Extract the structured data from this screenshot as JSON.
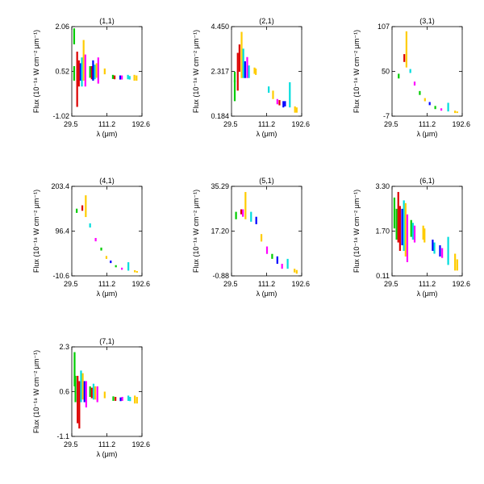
{
  "figure": {
    "x_axis_label": "λ (μm)",
    "y_axis_label": "Flux (10⁻¹⁸ W cm⁻² μm⁻¹)"
  },
  "chart_data": [
    {
      "type": "scatter",
      "title": "(1,1)",
      "xlabel": "λ (μm)",
      "ylabel": "Flux (10⁻¹⁸ W cm⁻² μm⁻¹)",
      "xlim": [
        29.5,
        192.6
      ],
      "ylim": [
        -1.02,
        2.06
      ],
      "xticks": [
        "29.5",
        "111.2",
        "192.6"
      ],
      "yticks": [
        "-1.02",
        "0.52",
        "2.06"
      ],
      "segments": [
        {
          "x": 35,
          "ymin": 1.45,
          "ymax": 2.0,
          "color": "#00cc00"
        },
        {
          "x": 35,
          "ymin": 0.2,
          "ymax": 0.7,
          "color": "#00cc00"
        },
        {
          "x": 42,
          "ymin": -0.7,
          "ymax": 1.2,
          "color": "#dd0000"
        },
        {
          "x": 46,
          "ymin": 0.0,
          "ymax": 0.9,
          "color": "#dd0000"
        },
        {
          "x": 50,
          "ymin": 0.2,
          "ymax": 0.8,
          "color": "#0000ff"
        },
        {
          "x": 53,
          "ymin": 0.0,
          "ymax": 1.0,
          "color": "#00dddd"
        },
        {
          "x": 57,
          "ymin": 0.2,
          "ymax": 1.6,
          "color": "#ffcc00"
        },
        {
          "x": 61,
          "ymin": 0.0,
          "ymax": 1.1,
          "color": "#ff00ff"
        },
        {
          "x": 72,
          "ymin": 0.3,
          "ymax": 0.7,
          "color": "#00cc00"
        },
        {
          "x": 76,
          "ymin": 0.25,
          "ymax": 0.7,
          "color": "#dd0000"
        },
        {
          "x": 79,
          "ymin": 0.2,
          "ymax": 0.9,
          "color": "#0000ff"
        },
        {
          "x": 83,
          "ymin": 0.25,
          "ymax": 0.75,
          "color": "#00dddd"
        },
        {
          "x": 87,
          "ymin": 0.3,
          "ymax": 0.8,
          "color": "#ffcc00"
        },
        {
          "x": 91,
          "ymin": 0.1,
          "ymax": 1.0,
          "color": "#ff00ff"
        },
        {
          "x": 106,
          "ymin": 0.42,
          "ymax": 0.62,
          "color": "#ffcc00"
        },
        {
          "x": 125,
          "ymin": 0.26,
          "ymax": 0.4,
          "color": "#00cc00"
        },
        {
          "x": 129,
          "ymin": 0.25,
          "ymax": 0.38,
          "color": "#dd0000"
        },
        {
          "x": 142,
          "ymin": 0.24,
          "ymax": 0.38,
          "color": "#0000ff"
        },
        {
          "x": 146,
          "ymin": 0.24,
          "ymax": 0.38,
          "color": "#ff00ff"
        },
        {
          "x": 160,
          "ymin": 0.25,
          "ymax": 0.4,
          "color": "#00dddd"
        },
        {
          "x": 164,
          "ymin": 0.24,
          "ymax": 0.36,
          "color": "#00dddd"
        },
        {
          "x": 175,
          "ymin": 0.2,
          "ymax": 0.4,
          "color": "#ffcc00"
        },
        {
          "x": 180,
          "ymin": 0.2,
          "ymax": 0.38,
          "color": "#ffcc00"
        }
      ]
    },
    {
      "type": "scatter",
      "title": "(2,1)",
      "xlabel": "λ (μm)",
      "ylabel": "Flux (10⁻¹⁸ W cm⁻² μm⁻¹)",
      "xlim": [
        29.5,
        192.6
      ],
      "ylim": [
        0.184,
        4.45
      ],
      "xticks": [
        "29.5",
        "111.2",
        "192.6"
      ],
      "yticks": [
        "0.184",
        "2.317",
        "4.450"
      ],
      "segments": [
        {
          "x": 37,
          "ymin": 0.9,
          "ymax": 1.9,
          "color": "#00cc00"
        },
        {
          "x": 37,
          "ymin": 1.8,
          "ymax": 2.3,
          "color": "#00cc00"
        },
        {
          "x": 44,
          "ymin": 1.4,
          "ymax": 3.2,
          "color": "#dd0000"
        },
        {
          "x": 48,
          "ymin": 2.3,
          "ymax": 3.6,
          "color": "#dd0000"
        },
        {
          "x": 53,
          "ymin": 2.0,
          "ymax": 4.2,
          "color": "#ffcc00"
        },
        {
          "x": 57,
          "ymin": 2.0,
          "ymax": 3.4,
          "color": "#00dddd"
        },
        {
          "x": 61,
          "ymin": 2.0,
          "ymax": 2.8,
          "color": "#0000ff"
        },
        {
          "x": 66,
          "ymin": 2.0,
          "ymax": 3.0,
          "color": "#ff00ff"
        },
        {
          "x": 70,
          "ymin": 2.0,
          "ymax": 2.6,
          "color": "#00dddd"
        },
        {
          "x": 83,
          "ymin": 2.2,
          "ymax": 2.5,
          "color": "#ffcc00"
        },
        {
          "x": 86,
          "ymin": 2.15,
          "ymax": 2.45,
          "color": "#ffcc00"
        },
        {
          "x": 116,
          "ymin": 1.3,
          "ymax": 1.6,
          "color": "#00dddd"
        },
        {
          "x": 126,
          "ymin": 1.0,
          "ymax": 1.4,
          "color": "#ffcc00"
        },
        {
          "x": 136,
          "ymin": 0.75,
          "ymax": 1.0,
          "color": "#ff00ff"
        },
        {
          "x": 141,
          "ymin": 0.7,
          "ymax": 0.95,
          "color": "#dd0000"
        },
        {
          "x": 150,
          "ymin": 0.6,
          "ymax": 0.9,
          "color": "#0000ff"
        },
        {
          "x": 154,
          "ymin": 0.65,
          "ymax": 0.9,
          "color": "#0000ff"
        },
        {
          "x": 165,
          "ymin": 0.6,
          "ymax": 1.8,
          "color": "#00dddd"
        },
        {
          "x": 177,
          "ymin": 0.35,
          "ymax": 0.65,
          "color": "#ffcc00"
        },
        {
          "x": 181,
          "ymin": 0.35,
          "ymax": 0.6,
          "color": "#ffcc00"
        }
      ]
    },
    {
      "type": "scatter",
      "title": "(3,1)",
      "xlabel": "λ (μm)",
      "ylabel": "Flux (10⁻¹⁸ W cm⁻² μm⁻¹)",
      "xlim": [
        29.5,
        192.6
      ],
      "ylim": [
        -7,
        107
      ],
      "xticks": [
        "29.5",
        "111.2",
        "192.6"
      ],
      "yticks": [
        "-7",
        "50",
        "107"
      ],
      "segments": [
        {
          "x": 45,
          "ymin": 41,
          "ymax": 47,
          "color": "#00cc00"
        },
        {
          "x": 58,
          "ymin": 62,
          "ymax": 72,
          "color": "#dd0000"
        },
        {
          "x": 63,
          "ymin": 55,
          "ymax": 101,
          "color": "#ffcc00"
        },
        {
          "x": 72,
          "ymin": 48,
          "ymax": 53,
          "color": "#00dddd"
        },
        {
          "x": 82,
          "ymin": 32,
          "ymax": 37,
          "color": "#ff00ff"
        },
        {
          "x": 94,
          "ymin": 20,
          "ymax": 25,
          "color": "#00cc00"
        },
        {
          "x": 106,
          "ymin": 12,
          "ymax": 16,
          "color": "#ffcc00"
        },
        {
          "x": 117,
          "ymin": 7,
          "ymax": 11,
          "color": "#0000ff"
        },
        {
          "x": 130,
          "ymin": 2,
          "ymax": 6,
          "color": "#00cc00"
        },
        {
          "x": 144,
          "ymin": 0,
          "ymax": 3,
          "color": "#ff00ff"
        },
        {
          "x": 160,
          "ymin": -1,
          "ymax": 10,
          "color": "#00dddd"
        },
        {
          "x": 176,
          "ymin": -3,
          "ymax": 0,
          "color": "#ffcc00"
        },
        {
          "x": 181,
          "ymin": -3,
          "ymax": -1,
          "color": "#ffcc00"
        }
      ]
    },
    {
      "type": "scatter",
      "title": "(4,1)",
      "xlabel": "λ (μm)",
      "ylabel": "Flux (10⁻¹⁸ W cm⁻² μm⁻¹)",
      "xlim": [
        29.5,
        192.6
      ],
      "ylim": [
        -10.6,
        203.4
      ],
      "xticks": [
        "29.5",
        "111.2",
        "192.6"
      ],
      "yticks": [
        "-10.6",
        "96.4",
        "203.4"
      ],
      "segments": [
        {
          "x": 41,
          "ymin": 140,
          "ymax": 150,
          "color": "#00cc00"
        },
        {
          "x": 54,
          "ymin": 145,
          "ymax": 158,
          "color": "#dd0000"
        },
        {
          "x": 62,
          "ymin": 130,
          "ymax": 182,
          "color": "#ffcc00"
        },
        {
          "x": 72,
          "ymin": 105,
          "ymax": 115,
          "color": "#00dddd"
        },
        {
          "x": 85,
          "ymin": 72,
          "ymax": 80,
          "color": "#ff00ff"
        },
        {
          "x": 98,
          "ymin": 50,
          "ymax": 57,
          "color": "#00cc00"
        },
        {
          "x": 110,
          "ymin": 30,
          "ymax": 37,
          "color": "#ffcc00"
        },
        {
          "x": 120,
          "ymin": 20,
          "ymax": 26,
          "color": "#0000ff"
        },
        {
          "x": 132,
          "ymin": 10,
          "ymax": 15,
          "color": "#00cc00"
        },
        {
          "x": 146,
          "ymin": 4,
          "ymax": 9,
          "color": "#ff00ff"
        },
        {
          "x": 161,
          "ymin": 2,
          "ymax": 22,
          "color": "#00dddd"
        },
        {
          "x": 176,
          "ymin": -2,
          "ymax": 3,
          "color": "#ffcc00"
        },
        {
          "x": 181,
          "ymin": -3,
          "ymax": 1,
          "color": "#ffcc00"
        }
      ]
    },
    {
      "type": "scatter",
      "title": "(5,1)",
      "xlabel": "λ (μm)",
      "ylabel": "Flux (10⁻¹⁸ W cm⁻² μm⁻¹)",
      "xlim": [
        29.5,
        192.6
      ],
      "ylim": [
        -0.88,
        35.29
      ],
      "xticks": [
        "29.5",
        "111.2",
        "192.6"
      ],
      "yticks": [
        "-0.88",
        "17.20",
        "35.29"
      ],
      "segments": [
        {
          "x": 40,
          "ymin": 22,
          "ymax": 25,
          "color": "#00cc00"
        },
        {
          "x": 52,
          "ymin": 24,
          "ymax": 26,
          "color": "#dd0000"
        },
        {
          "x": 56,
          "ymin": 23,
          "ymax": 26,
          "color": "#ff00ff"
        },
        {
          "x": 62,
          "ymin": 22,
          "ymax": 33,
          "color": "#ffcc00"
        },
        {
          "x": 75,
          "ymin": 21,
          "ymax": 25,
          "color": "#00dddd"
        },
        {
          "x": 87,
          "ymin": 20,
          "ymax": 23,
          "color": "#0000ff"
        },
        {
          "x": 99,
          "ymin": 13,
          "ymax": 16,
          "color": "#ffcc00"
        },
        {
          "x": 112,
          "ymin": 8,
          "ymax": 11,
          "color": "#ff00ff"
        },
        {
          "x": 124,
          "ymin": 6,
          "ymax": 8,
          "color": "#00cc00"
        },
        {
          "x": 136,
          "ymin": 4,
          "ymax": 7,
          "color": "#0000ff"
        },
        {
          "x": 147,
          "ymin": 2,
          "ymax": 4,
          "color": "#ff00ff"
        },
        {
          "x": 160,
          "ymin": 2,
          "ymax": 6,
          "color": "#00dddd"
        },
        {
          "x": 176,
          "ymin": 0.5,
          "ymax": 2,
          "color": "#ffcc00"
        },
        {
          "x": 181,
          "ymin": 0,
          "ymax": 1.5,
          "color": "#ffcc00"
        }
      ]
    },
    {
      "type": "scatter",
      "title": "(6,1)",
      "xlabel": "λ (μm)",
      "ylabel": "Flux (10⁻¹⁸ W cm⁻² μm⁻¹)",
      "xlim": [
        29.5,
        192.6
      ],
      "ylim": [
        0.11,
        3.3
      ],
      "xticks": [
        "29.5",
        "111.2",
        "192.6"
      ],
      "yticks": [
        "0.11",
        "1.70",
        "3.30"
      ],
      "segments": [
        {
          "x": 35,
          "ymin": 1.8,
          "ymax": 2.9,
          "color": "#00cc00"
        },
        {
          "x": 40,
          "ymin": 1.4,
          "ymax": 2.5,
          "color": "#00cc00"
        },
        {
          "x": 44,
          "ymin": 1.3,
          "ymax": 3.1,
          "color": "#dd0000"
        },
        {
          "x": 48,
          "ymin": 1.0,
          "ymax": 2.6,
          "color": "#dd0000"
        },
        {
          "x": 53,
          "ymin": 1.2,
          "ymax": 2.5,
          "color": "#0000ff"
        },
        {
          "x": 57,
          "ymin": 1.0,
          "ymax": 2.8,
          "color": "#00dddd"
        },
        {
          "x": 61,
          "ymin": 0.8,
          "ymax": 2.7,
          "color": "#ffcc00"
        },
        {
          "x": 65,
          "ymin": 0.6,
          "ymax": 2.3,
          "color": "#ff00ff"
        },
        {
          "x": 74,
          "ymin": 1.5,
          "ymax": 2.1,
          "color": "#00cc00"
        },
        {
          "x": 78,
          "ymin": 1.4,
          "ymax": 2.0,
          "color": "#00dddd"
        },
        {
          "x": 82,
          "ymin": 1.3,
          "ymax": 1.9,
          "color": "#ff00ff"
        },
        {
          "x": 102,
          "ymin": 1.4,
          "ymax": 1.9,
          "color": "#ffcc00"
        },
        {
          "x": 105,
          "ymin": 1.3,
          "ymax": 1.8,
          "color": "#ffcc00"
        },
        {
          "x": 124,
          "ymin": 1.0,
          "ymax": 1.4,
          "color": "#0000ff"
        },
        {
          "x": 128,
          "ymin": 0.9,
          "ymax": 1.3,
          "color": "#00dddd"
        },
        {
          "x": 141,
          "ymin": 0.8,
          "ymax": 1.2,
          "color": "#0000ff"
        },
        {
          "x": 146,
          "ymin": 0.75,
          "ymax": 1.1,
          "color": "#ff00ff"
        },
        {
          "x": 160,
          "ymin": 0.5,
          "ymax": 1.5,
          "color": "#00dddd"
        },
        {
          "x": 176,
          "ymin": 0.3,
          "ymax": 0.9,
          "color": "#ffcc00"
        },
        {
          "x": 181,
          "ymin": 0.3,
          "ymax": 0.7,
          "color": "#ffcc00"
        }
      ]
    },
    {
      "type": "scatter",
      "title": "(7,1)",
      "xlabel": "λ (μm)",
      "ylabel": "Flux (10⁻¹⁸ W cm⁻² μm⁻¹)",
      "xlim": [
        29.5,
        192.6
      ],
      "ylim": [
        -1.1,
        2.3
      ],
      "xticks": [
        "29.5",
        "111.2",
        "192.6"
      ],
      "yticks": [
        "-1.1",
        "0.6",
        "2.3"
      ],
      "segments": [
        {
          "x": 36,
          "ymin": 0.8,
          "ymax": 2.1,
          "color": "#00cc00"
        },
        {
          "x": 38,
          "ymin": 0.2,
          "ymax": 1.2,
          "color": "#00cc00"
        },
        {
          "x": 43,
          "ymin": -0.6,
          "ymax": 1.2,
          "color": "#dd0000"
        },
        {
          "x": 47,
          "ymin": -0.8,
          "ymax": 1.0,
          "color": "#dd0000"
        },
        {
          "x": 51,
          "ymin": 0.2,
          "ymax": 1.4,
          "color": "#00dddd"
        },
        {
          "x": 55,
          "ymin": 0.3,
          "ymax": 1.3,
          "color": "#ffcc00"
        },
        {
          "x": 59,
          "ymin": 0.2,
          "ymax": 1.0,
          "color": "#0000ff"
        },
        {
          "x": 63,
          "ymin": 0.0,
          "ymax": 1.0,
          "color": "#ff00ff"
        },
        {
          "x": 72,
          "ymin": 0.4,
          "ymax": 0.8,
          "color": "#00cc00"
        },
        {
          "x": 76,
          "ymin": 0.35,
          "ymax": 0.75,
          "color": "#dd0000"
        },
        {
          "x": 80,
          "ymin": 0.3,
          "ymax": 0.9,
          "color": "#00dddd"
        },
        {
          "x": 84,
          "ymin": 0.3,
          "ymax": 0.8,
          "color": "#ffcc00"
        },
        {
          "x": 89,
          "ymin": 0.2,
          "ymax": 0.8,
          "color": "#ff00ff"
        },
        {
          "x": 106,
          "ymin": 0.35,
          "ymax": 0.6,
          "color": "#ffcc00"
        },
        {
          "x": 126,
          "ymin": 0.25,
          "ymax": 0.42,
          "color": "#00cc00"
        },
        {
          "x": 131,
          "ymin": 0.25,
          "ymax": 0.4,
          "color": "#dd0000"
        },
        {
          "x": 143,
          "ymin": 0.24,
          "ymax": 0.38,
          "color": "#0000ff"
        },
        {
          "x": 147,
          "ymin": 0.25,
          "ymax": 0.4,
          "color": "#ff00ff"
        },
        {
          "x": 161,
          "ymin": 0.25,
          "ymax": 0.45,
          "color": "#00dddd"
        },
        {
          "x": 165,
          "ymin": 0.24,
          "ymax": 0.4,
          "color": "#00dddd"
        },
        {
          "x": 176,
          "ymin": 0.15,
          "ymax": 0.45,
          "color": "#ffcc00"
        },
        {
          "x": 181,
          "ymin": 0.15,
          "ymax": 0.4,
          "color": "#ffcc00"
        }
      ]
    }
  ]
}
